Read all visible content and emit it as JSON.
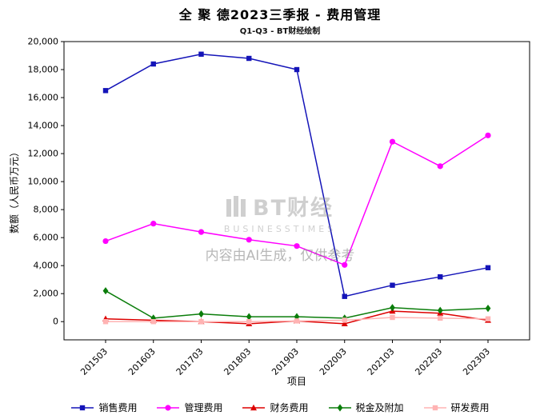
{
  "title": "全 聚 德2023三季报 - 费用管理",
  "subtitle": "Q1-Q3 - BT财经绘制",
  "watermark": {
    "logo_text": "BT财经",
    "logo_sub": "BUSINESSTIMES",
    "disclaimer": "内容由AI生成，仅供参考"
  },
  "chart_data": {
    "type": "line",
    "title": "全 聚 德2023三季报 - 费用管理",
    "subtitle": "Q1-Q3 - BT财经绘制",
    "xlabel": "项目",
    "ylabel": "数额（人民币万元）",
    "categories": [
      "201503",
      "201603",
      "201703",
      "201803",
      "201903",
      "202003",
      "202103",
      "202203",
      "202303"
    ],
    "series": [
      {
        "name": "销售费用",
        "color": "#1414b8",
        "marker": "square",
        "values": [
          16500,
          18400,
          19100,
          18800,
          18000,
          1800,
          2600,
          3200,
          3850
        ]
      },
      {
        "name": "管理费用",
        "color": "#ff00ff",
        "marker": "circle",
        "values": [
          5750,
          7000,
          6400,
          5850,
          5400,
          4050,
          12850,
          11100,
          13300
        ]
      },
      {
        "name": "财务费用",
        "color": "#dd0000",
        "marker": "triangle",
        "values": [
          200,
          100,
          0,
          -150,
          50,
          -150,
          750,
          600,
          100
        ]
      },
      {
        "name": "税金及附加",
        "color": "#0a7d0a",
        "marker": "diamond",
        "values": [
          2200,
          250,
          550,
          350,
          350,
          250,
          1000,
          800,
          950
        ]
      },
      {
        "name": "研发费用",
        "color": "#ffb3b3",
        "marker": "square",
        "values": [
          0,
          0,
          0,
          0,
          50,
          100,
          300,
          250,
          200
        ]
      }
    ],
    "ylim": [
      -1300,
      20000
    ],
    "yticks": [
      0,
      2000,
      4000,
      6000,
      8000,
      10000,
      12000,
      14000,
      16000,
      18000,
      20000
    ],
    "grid": false,
    "legend_position": "bottom"
  }
}
